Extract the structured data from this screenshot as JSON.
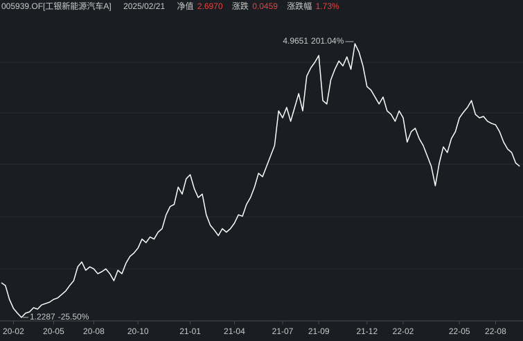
{
  "header": {
    "code": "005939.OF[工银新能源汽车A]",
    "date": "2025/02/21",
    "nav_label": "净值",
    "nav": "2.6970",
    "change_label": "涨跌",
    "change": "0.0459",
    "pct_label": "涨跌幅",
    "pct": "1.73%"
  },
  "chart_data": {
    "type": "line",
    "color": "#ffffff",
    "grid": true,
    "categories": [
      null,
      null,
      null,
      "20-02",
      null,
      null,
      null,
      null,
      null,
      null,
      null,
      null,
      null,
      "20-05",
      null,
      null,
      null,
      null,
      null,
      null,
      null,
      null,
      null,
      "20-08",
      null,
      null,
      null,
      null,
      null,
      null,
      null,
      null,
      null,
      null,
      "20-10",
      null,
      null,
      null,
      null,
      null,
      null,
      null,
      null,
      null,
      null,
      null,
      null,
      "21-01",
      null,
      null,
      null,
      null,
      null,
      null,
      null,
      null,
      null,
      null,
      "21-04",
      null,
      null,
      null,
      null,
      null,
      null,
      null,
      null,
      null,
      null,
      null,
      "21-07",
      null,
      null,
      null,
      null,
      null,
      null,
      null,
      null,
      "21-09",
      null,
      null,
      null,
      null,
      null,
      null,
      null,
      null,
      null,
      null,
      null,
      "21-12",
      null,
      null,
      null,
      null,
      null,
      null,
      null,
      null,
      "22-02",
      null,
      null,
      null,
      null,
      null,
      null,
      null,
      null,
      null,
      null,
      null,
      null,
      null,
      "22-05",
      null,
      null,
      null,
      null,
      null,
      null,
      null,
      null,
      "22-08",
      null,
      null,
      null,
      null,
      null,
      null
    ],
    "values": [
      1.702,
      1.664,
      1.475,
      1.352,
      1.286,
      1.2287,
      1.286,
      1.304,
      1.361,
      1.342,
      1.399,
      1.418,
      1.437,
      1.475,
      1.494,
      1.541,
      1.588,
      1.664,
      1.73,
      1.919,
      1.986,
      1.872,
      1.919,
      1.891,
      1.825,
      1.853,
      1.891,
      1.825,
      1.73,
      1.872,
      1.825,
      1.967,
      2.061,
      2.108,
      2.175,
      2.298,
      2.25,
      2.326,
      2.298,
      2.392,
      2.44,
      2.629,
      2.742,
      2.771,
      3.007,
      2.912,
      3.121,
      3.177,
      2.988,
      2.865,
      2.912,
      2.629,
      2.487,
      2.421,
      2.345,
      2.44,
      2.392,
      2.44,
      2.515,
      2.629,
      2.61,
      2.771,
      2.865,
      3.007,
      3.196,
      3.149,
      3.291,
      3.433,
      3.575,
      4.048,
      3.953,
      4.095,
      3.906,
      4.095,
      4.284,
      4.048,
      4.521,
      4.634,
      4.71,
      4.804,
      4.189,
      4.142,
      4.473,
      4.615,
      4.729,
      4.662,
      4.785,
      4.615,
      4.9651,
      4.852,
      4.662,
      4.379,
      4.331,
      4.237,
      4.142,
      4.237,
      4.048,
      4.0,
      3.906,
      4.048,
      3.953,
      3.622,
      3.764,
      3.811,
      3.669,
      3.575,
      3.433,
      3.291,
      3.026,
      3.338,
      3.556,
      3.48,
      3.669,
      3.764,
      3.953,
      4.029,
      4.095,
      4.189,
      4.0,
      3.953,
      3.972,
      3.906,
      3.877,
      3.858,
      3.764,
      3.622,
      3.527,
      3.48,
      3.338,
      3.291
    ],
    "ylim": [
      1.181,
      5.448
    ],
    "yticks": [
      1.89,
      2.6,
      3.32,
      4.02,
      4.71
    ],
    "max_change": "201.04%",
    "min_change": "-25.50%",
    "max_color": "#e8413f",
    "min_color": "#33c24d"
  }
}
